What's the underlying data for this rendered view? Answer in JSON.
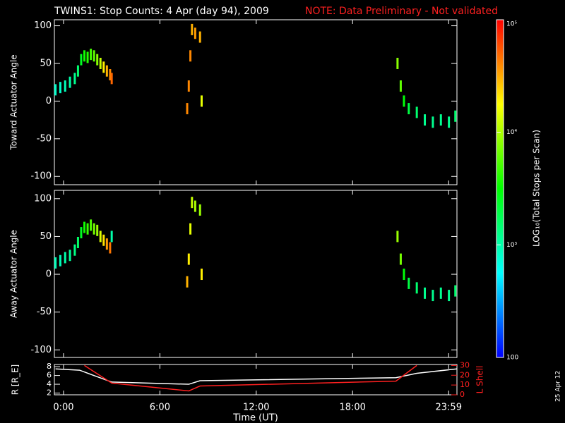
{
  "title": "TWINS1: Stop Counts:  4 Apr (day  94), 2009",
  "note": "NOTE: Data Preliminary - Not validated",
  "date_stamp": "25 Apr 12",
  "colorbar": {
    "label": "LOG₁₀(Total Stops per Scan)",
    "log": true,
    "lim": [
      100,
      100000
    ],
    "ticks": [
      100,
      {
        "value": 1000,
        "label": "10³"
      },
      {
        "value": 10000,
        "label": "10⁴"
      },
      {
        "value": 100000,
        "label": "10⁵"
      }
    ]
  },
  "chart_data": [
    {
      "type": "scatter",
      "ylabel": "Toward Actuator Angle",
      "xlim": [
        -0.57,
        24.5
      ],
      "ylim": [
        -111,
        108
      ],
      "yticks": [
        -100,
        -50,
        0,
        50,
        100
      ],
      "xticks": [
        0,
        6,
        12,
        18,
        23.983
      ],
      "x": [
        -0.5,
        -0.2,
        0.1,
        0.4,
        0.7,
        0.9,
        1.1,
        1.3,
        1.5,
        1.7,
        1.9,
        2.1,
        2.3,
        2.5,
        2.7,
        2.9,
        3.0,
        7.7,
        7.8,
        7.9,
        8.0,
        8.2,
        8.5,
        8.6,
        20.8,
        21.0,
        21.2,
        21.5,
        22.0,
        22.5,
        23.0,
        23.5,
        24.0,
        24.4
      ],
      "values": [
        15,
        18,
        20,
        25,
        30,
        40,
        55,
        60,
        58,
        62,
        60,
        55,
        50,
        45,
        40,
        35,
        30,
        -10,
        20,
        60,
        95,
        90,
        85,
        0,
        50,
        20,
        0,
        -10,
        -15,
        -25,
        -28,
        -25,
        -28,
        -20
      ],
      "counts": [
        800,
        800,
        900,
        1000,
        1200,
        1500,
        2500,
        3500,
        4000,
        5000,
        6000,
        8000,
        12000,
        20000,
        30000,
        40000,
        50000,
        40000,
        40000,
        40000,
        30000,
        35000,
        30000,
        15000,
        8000,
        6000,
        3000,
        2000,
        1500,
        1200,
        1200,
        1200,
        1200,
        1500
      ]
    },
    {
      "type": "scatter",
      "ylabel": "Away Actuator Angle",
      "xlim": [
        -0.57,
        24.5
      ],
      "ylim": [
        -110,
        111
      ],
      "yticks": [
        -100,
        -50,
        0,
        50,
        100
      ],
      "xticks": [
        0,
        6,
        12,
        18,
        23.983
      ],
      "x": [
        -0.5,
        -0.2,
        0.1,
        0.4,
        0.7,
        0.9,
        1.1,
        1.3,
        1.5,
        1.7,
        1.9,
        2.1,
        2.3,
        2.5,
        2.7,
        2.9,
        3.0,
        7.7,
        7.8,
        7.9,
        8.0,
        8.2,
        8.5,
        8.6,
        20.8,
        21.0,
        21.2,
        21.5,
        22.0,
        22.5,
        23.0,
        23.5,
        24.0,
        24.4
      ],
      "values": [
        15,
        18,
        22,
        25,
        32,
        42,
        55,
        62,
        60,
        65,
        60,
        58,
        50,
        45,
        40,
        35,
        50,
        -10,
        20,
        60,
        95,
        90,
        85,
        0,
        50,
        20,
        0,
        -12,
        -18,
        -25,
        -28,
        -25,
        -28,
        -22
      ],
      "counts": [
        900,
        900,
        1000,
        1100,
        1300,
        1600,
        2500,
        3500,
        4500,
        5500,
        7000,
        9000,
        14000,
        22000,
        35000,
        45000,
        1000,
        30000,
        20000,
        15000,
        12000,
        10000,
        9000,
        20000,
        9000,
        7000,
        3000,
        2000,
        1500,
        1200,
        1200,
        1200,
        1200,
        1500
      ]
    },
    {
      "type": "line",
      "ylabel": "R [R_E]",
      "y2label": "L Shell",
      "xlim": [
        -0.57,
        24.5
      ],
      "ylim": [
        1.6,
        8.5
      ],
      "yticks": [
        2,
        4,
        6,
        8
      ],
      "y2lim": [
        0,
        31
      ],
      "y2ticks": [
        0,
        10,
        20,
        30
      ],
      "xlabel": "Time (UT)",
      "xticks": [
        {
          "value": 0,
          "label": "0:00"
        },
        {
          "value": 6,
          "label": "6:00"
        },
        {
          "value": 12,
          "label": "12:00"
        },
        {
          "value": 18,
          "label": "18:00"
        },
        {
          "value": 23.983,
          "label": "23:59"
        }
      ],
      "series": [
        {
          "color": "#ffffff",
          "x": [
            -0.5,
            1.0,
            3.0,
            7.8,
            8.5,
            20.7,
            22.0,
            24.5
          ],
          "values": [
            7.5,
            7.2,
            4.5,
            4.0,
            4.8,
            5.5,
            6.5,
            7.5
          ]
        },
        {
          "color": "#ff2020",
          "axis": "y2",
          "x": [
            1.3,
            3.0,
            7.8,
            8.5,
            20.7,
            22.0
          ],
          "values": [
            30,
            12,
            4,
            9,
            14,
            30
          ]
        }
      ]
    }
  ]
}
